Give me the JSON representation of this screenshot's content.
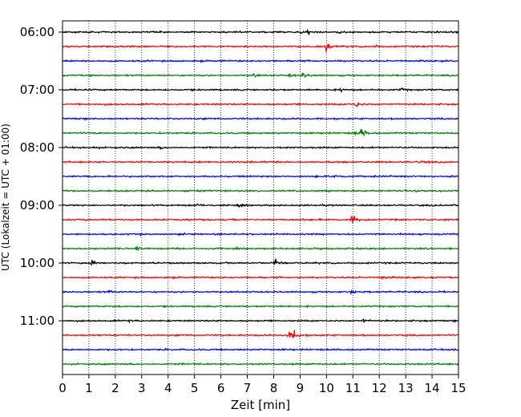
{
  "chart_data": {
    "type": "line",
    "subtype": "helicorder seismogram",
    "xlabel": "Zeit  [min]",
    "ylabel": "UTC (Lokalzeit = UTC + 01:00)",
    "xlim": [
      0,
      15
    ],
    "x_ticks": [
      "0",
      "1",
      "2",
      "3",
      "4",
      "5",
      "6",
      "7",
      "8",
      "9",
      "10",
      "11",
      "12",
      "13",
      "14",
      "15"
    ],
    "y_tick_labels": [
      "06:00",
      "07:00",
      "08:00",
      "09:00",
      "10:00",
      "11:00"
    ],
    "x_grid": "dotted vertical at each minute",
    "color_cycle": [
      "#000000",
      "#ff0000",
      "#0000ff",
      "#008000"
    ],
    "traces": [
      {
        "start": "06:00",
        "color": "#000000",
        "events": [
          {
            "t": 9.0,
            "amp": 0.25
          },
          {
            "t": 9.3,
            "amp": 0.3
          },
          {
            "t": 10.5,
            "amp": 0.2
          },
          {
            "t": 14.2,
            "amp": 0.2
          }
        ]
      },
      {
        "start": "06:15",
        "color": "#ff0000",
        "events": [
          {
            "t": 10.0,
            "amp": 0.9
          },
          {
            "t": 11.8,
            "amp": 0.25
          }
        ]
      },
      {
        "start": "06:30",
        "color": "#0000ff",
        "events": []
      },
      {
        "start": "06:45",
        "color": "#008000",
        "events": [
          {
            "t": 7.2,
            "amp": 0.4
          },
          {
            "t": 8.6,
            "amp": 0.3
          },
          {
            "t": 9.1,
            "amp": 0.5
          }
        ]
      },
      {
        "start": "07:00",
        "color": "#000000",
        "events": [
          {
            "t": 10.5,
            "amp": 0.35
          },
          {
            "t": 12.8,
            "amp": 0.3
          }
        ]
      },
      {
        "start": "07:15",
        "color": "#ff0000",
        "events": [
          {
            "t": 11.1,
            "amp": 0.7
          }
        ]
      },
      {
        "start": "07:30",
        "color": "#0000ff",
        "events": []
      },
      {
        "start": "07:45",
        "color": "#008000",
        "events": [
          {
            "t": 11.0,
            "amp": 0.45
          },
          {
            "t": 11.3,
            "amp": 1.0
          }
        ]
      },
      {
        "start": "08:00",
        "color": "#000000",
        "events": [
          {
            "t": 1.2,
            "amp": 0.25
          },
          {
            "t": 3.7,
            "amp": 0.2
          }
        ]
      },
      {
        "start": "08:15",
        "color": "#ff0000",
        "events": [
          {
            "t": 13.5,
            "amp": 0.25
          }
        ]
      },
      {
        "start": "08:30",
        "color": "#0000ff",
        "events": [
          {
            "t": 10.3,
            "amp": 0.65
          }
        ]
      },
      {
        "start": "08:45",
        "color": "#008000",
        "events": [
          {
            "t": 13.3,
            "amp": 0.2
          }
        ]
      },
      {
        "start": "09:00",
        "color": "#000000",
        "events": [
          {
            "t": 5.1,
            "amp": 0.3
          },
          {
            "t": 6.6,
            "amp": 0.3
          }
        ]
      },
      {
        "start": "09:15",
        "color": "#ff0000",
        "events": [
          {
            "t": 10.95,
            "amp": 1.4
          }
        ]
      },
      {
        "start": "09:30",
        "color": "#0000ff",
        "events": []
      },
      {
        "start": "09:45",
        "color": "#008000",
        "events": [
          {
            "t": 2.8,
            "amp": 0.55
          }
        ]
      },
      {
        "start": "10:00",
        "color": "#000000",
        "events": [
          {
            "t": 1.1,
            "amp": 0.75
          },
          {
            "t": 8.05,
            "amp": 0.9
          }
        ]
      },
      {
        "start": "10:15",
        "color": "#ff0000",
        "events": [
          {
            "t": 12.1,
            "amp": 0.3
          }
        ]
      },
      {
        "start": "10:30",
        "color": "#0000ff",
        "events": [
          {
            "t": 1.7,
            "amp": 0.3
          },
          {
            "t": 10.9,
            "amp": 0.3
          }
        ]
      },
      {
        "start": "10:45",
        "color": "#008000",
        "events": []
      },
      {
        "start": "11:00",
        "color": "#000000",
        "events": [
          {
            "t": 2.5,
            "amp": 0.2
          },
          {
            "t": 11.4,
            "amp": 0.3
          }
        ]
      },
      {
        "start": "11:15",
        "color": "#ff0000",
        "events": [
          {
            "t": 8.55,
            "amp": 0.75
          },
          {
            "t": 8.75,
            "amp": 1.2
          }
        ]
      },
      {
        "start": "11:30",
        "color": "#0000ff",
        "events": [
          {
            "t": 14.85,
            "amp": 0.3
          }
        ]
      },
      {
        "start": "11:45",
        "color": "#008000",
        "events": []
      }
    ]
  }
}
